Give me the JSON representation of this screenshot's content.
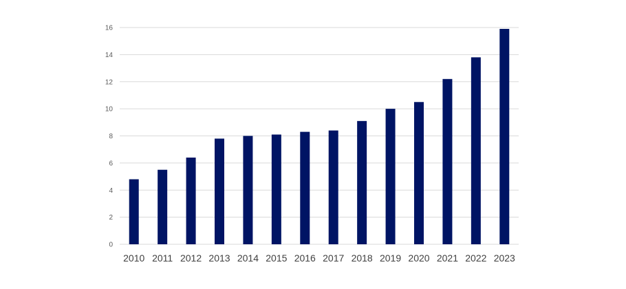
{
  "chart_data": {
    "type": "bar",
    "title": "",
    "xlabel": "",
    "ylabel": "",
    "categories": [
      "2010",
      "2011",
      "2012",
      "2013",
      "2014",
      "2015",
      "2016",
      "2017",
      "2018",
      "2019",
      "2020",
      "2021",
      "2022",
      "2023"
    ],
    "values": [
      4.8,
      5.5,
      6.4,
      7.8,
      8.0,
      8.1,
      8.3,
      8.4,
      9.1,
      10.0,
      10.5,
      12.2,
      13.8,
      15.9
    ],
    "ylim": [
      0,
      16
    ],
    "yticks": [
      0,
      2,
      4,
      6,
      8,
      10,
      12,
      14,
      16
    ],
    "grid": true,
    "legend": "none",
    "bar_color": "#001464"
  }
}
